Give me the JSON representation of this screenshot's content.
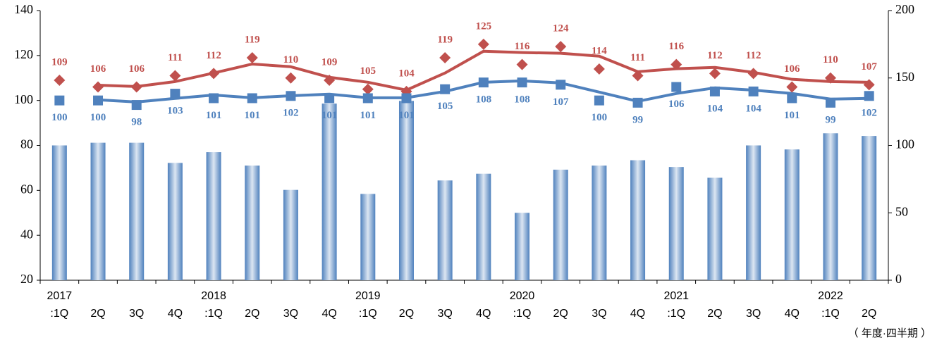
{
  "chart_data": {
    "type": "combo",
    "categories": [
      "2017\n:1Q",
      "2Q",
      "3Q",
      "4Q",
      "2018\n:1Q",
      "2Q",
      "3Q",
      "4Q",
      "2019\n:1Q",
      "2Q",
      "3Q",
      "4Q",
      "2020\n:1Q",
      "2Q",
      "3Q",
      "4Q",
      "2021\n:1Q",
      "2Q",
      "3Q",
      "4Q",
      "2022\n:1Q",
      "2Q"
    ],
    "x_label": "（ 年度·四半期 ）",
    "ylim": [
      20,
      140
    ],
    "yticks": [
      20,
      40,
      60,
      80,
      100,
      120,
      140
    ],
    "y2lim": [
      0,
      200
    ],
    "y2ticks": [
      0,
      50,
      100,
      150,
      200
    ],
    "series": [
      {
        "kind": "bar",
        "axis": "y2",
        "color": "#4f81bd",
        "values": [
          100,
          102,
          102,
          87,
          95,
          85,
          67,
          131,
          64,
          133,
          74,
          79,
          50,
          82,
          85,
          89,
          84,
          76,
          100,
          97,
          109,
          107
        ]
      },
      {
        "kind": "line",
        "color": "#c0504d",
        "values": [
          null,
          106.8,
          106.2,
          108.4,
          112.2,
          116.2,
          115,
          110.3,
          108.1,
          104.6,
          112.2,
          121.9,
          121.3,
          121,
          119.7,
          112.8,
          114.1,
          114.7,
          112.5,
          109.4,
          108.4,
          108.1
        ]
      },
      {
        "kind": "line",
        "color": "#4f81bd",
        "values": [
          null,
          100.3,
          99.3,
          100.9,
          102.4,
          101.2,
          102.1,
          102.8,
          101.2,
          101.2,
          104,
          108.1,
          108.7,
          107.8,
          103.7,
          99.6,
          103.1,
          105.6,
          104.6,
          103.1,
          100.6,
          100.9
        ]
      },
      {
        "kind": "marker",
        "marker": "diamond",
        "label_position": "above",
        "color": "#c0504d",
        "values": [
          109,
          106,
          106,
          111,
          112,
          119,
          110,
          109,
          105,
          104,
          119,
          125,
          116,
          124,
          114,
          111,
          116,
          112,
          112,
          106,
          110,
          107
        ]
      },
      {
        "kind": "marker",
        "marker": "square",
        "label_position": "below",
        "color": "#4f81bd",
        "values": [
          100,
          100,
          98,
          103,
          101,
          101,
          102,
          101,
          101,
          101,
          105,
          108,
          108,
          107,
          100,
          99,
          106,
          104,
          104,
          101,
          99,
          102
        ]
      }
    ]
  }
}
